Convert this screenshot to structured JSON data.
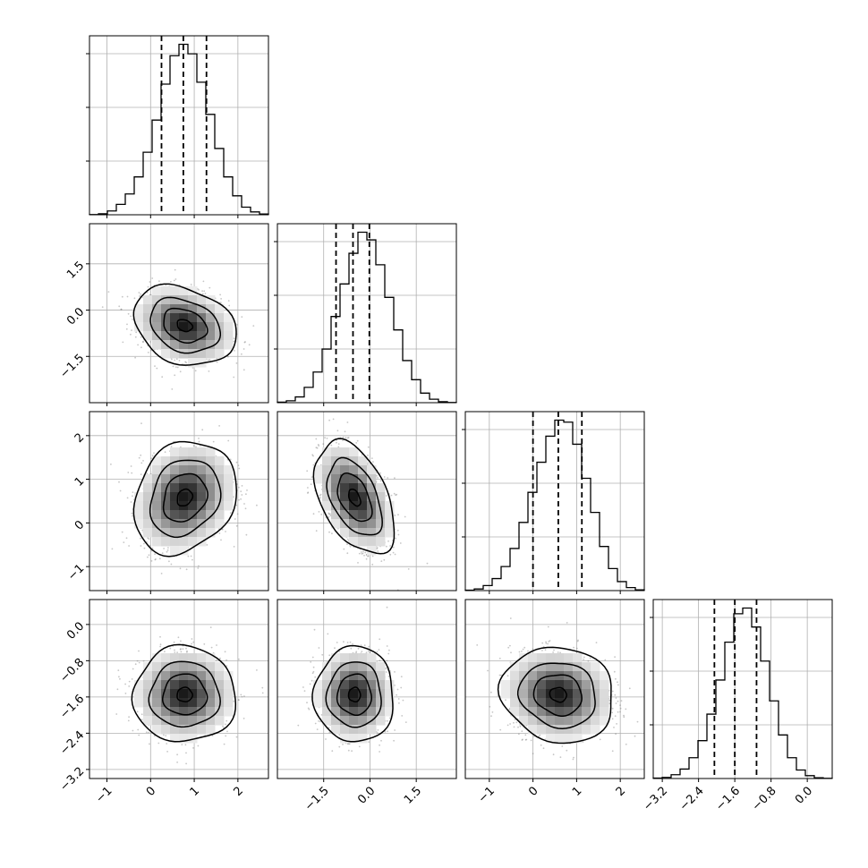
{
  "chart_data": {
    "type": "corner",
    "parameters": 4,
    "grid": true,
    "colors": {
      "frame": "#000000",
      "grid": "#b0b0b0",
      "scatter": "#808080",
      "contour": "#000000"
    },
    "ranges": [
      [
        -1.4,
        2.7
      ],
      [
        -3.0,
        2.8
      ],
      [
        -1.55,
        2.55
      ],
      [
        -3.4,
        0.55
      ]
    ],
    "x_tick_labels": [
      [
        "−1",
        "0",
        "1",
        "2"
      ],
      [
        "−1.5",
        "0.0",
        "1.5"
      ],
      [
        "−1",
        "0",
        "1",
        "2"
      ],
      [
        "−3.2",
        "−2.4",
        "−1.6",
        "−0.8",
        "0.0"
      ]
    ],
    "y_tick_labels": [
      [],
      [
        "1.5",
        "0.0",
        "−1.5"
      ],
      [
        "2",
        "1",
        "0",
        "−1"
      ],
      [
        "0.0",
        "−0.8",
        "−1.6",
        "−2.4",
        "−3.2"
      ]
    ],
    "quantiles": [
      [
        0.25,
        0.75,
        1.28
      ],
      [
        -1.1,
        -0.55,
        -0.02
      ],
      [
        0.0,
        0.58,
        1.12
      ],
      [
        -2.05,
        -1.6,
        -1.12
      ]
    ],
    "histograms": [
      [
        0.1,
        0.5,
        2,
        5.5,
        11,
        20,
        33,
        50,
        69,
        84,
        90,
        85,
        70,
        53,
        35,
        20,
        10,
        4,
        1.5,
        0.4
      ],
      [
        0.3,
        1,
        3,
        8,
        16,
        28,
        45,
        62,
        78,
        89,
        85,
        72,
        55,
        38,
        22,
        12,
        5,
        1.8,
        0.5,
        0.1
      ],
      [
        0.2,
        0.8,
        2.5,
        6,
        12,
        21,
        34,
        49,
        64,
        77,
        85,
        84,
        73,
        56,
        39,
        22,
        11,
        4.5,
        1.5,
        0.4
      ],
      [
        0.2,
        0.6,
        2,
        5,
        11,
        20,
        34,
        52,
        72,
        87,
        90,
        80,
        62,
        41,
        23,
        11,
        4.5,
        1.5,
        0.4,
        0.1
      ]
    ],
    "means": [
      0.78,
      -0.5,
      0.58,
      -1.55
    ],
    "sigmas": [
      0.5,
      0.55,
      0.55,
      0.45
    ],
    "correlations": {
      "1-0": -0.25,
      "2-0": 0.2,
      "2-1": -0.45,
      "3-0": 0.0,
      "3-1": 0.0,
      "3-2": -0.1
    }
  }
}
